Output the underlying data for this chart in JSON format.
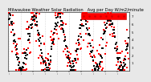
{
  "title": "Milwaukee Weather Solar Radiation   Avg per Day W/m2/minute",
  "title_fontsize": 3.8,
  "background_color": "#e8e8e8",
  "plot_bg": "#ffffff",
  "ylim": [
    0,
    7.5
  ],
  "yticks": [
    1,
    2,
    3,
    4,
    5,
    6,
    7
  ],
  "ytick_labels": [
    "1",
    "2",
    "3",
    "4",
    "5",
    "6",
    "7"
  ],
  "dot_color_main": "#ff0000",
  "dot_color_secondary": "#000000",
  "vline_color": "#bbbbbb",
  "legend_color": "#ff0000",
  "legend_text": "----",
  "n_points": 250,
  "vline_step": 25
}
